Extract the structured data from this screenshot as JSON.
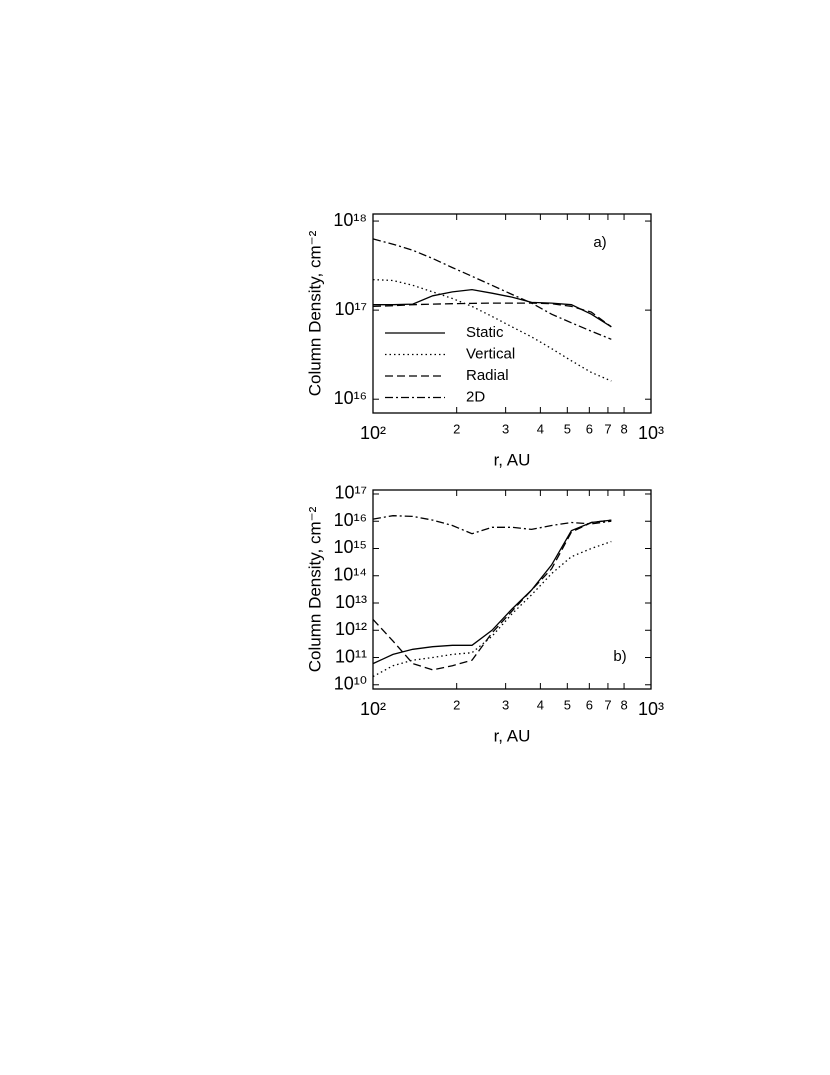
{
  "chart_data": [
    {
      "type": "line",
      "annotation": "a)",
      "x_label": "r, AU",
      "y_label": "Column Density, cm⁻²",
      "xscale": "log",
      "yscale": "log",
      "legend": "lower left",
      "xlim": [
        100,
        1000
      ],
      "xticks": [
        {
          "value": 100,
          "label": "10²"
        },
        {
          "value": 200,
          "label": "2"
        },
        {
          "value": 300,
          "label": "3"
        },
        {
          "value": 400,
          "label": "4"
        },
        {
          "value": 500,
          "label": "5"
        },
        {
          "value": 600,
          "label": "6"
        },
        {
          "value": 700,
          "label": "7"
        },
        {
          "value": 800,
          "label": "8"
        },
        {
          "value": 1000,
          "label": "10³"
        }
      ],
      "ylim": [
        7000000000000000.0,
        1.2e+18
      ],
      "yticks": [
        {
          "value": 1e+16,
          "label": "10¹⁶"
        },
        {
          "value": 1e+17,
          "label": "10¹⁷"
        },
        {
          "value": 1e+18,
          "label": "10¹⁸"
        }
      ],
      "x": [
        100,
        118,
        139,
        164,
        193,
        227,
        268,
        316,
        372,
        439,
        517,
        610,
        720
      ],
      "series": [
        {
          "name": "Static",
          "color": "#000000",
          "style": "solid",
          "values": [
            1.15e+17,
            1.15e+17,
            1.17e+17,
            1.45e+17,
            1.6e+17,
            1.7e+17,
            1.55e+17,
            1.4e+17,
            1.22e+17,
            1.2e+17,
            1.15e+17,
            9e+16,
            6.5e+16
          ]
        },
        {
          "name": "Vertical",
          "color": "#000000",
          "style": "dotted",
          "values": [
            2.2e+17,
            2.15e+17,
            1.9e+17,
            1.6e+17,
            1.35e+17,
            1.1e+17,
            8.5e+16,
            6.5e+16,
            5e+16,
            3.7e+16,
            2.7e+16,
            2e+16,
            1.6e+16
          ]
        },
        {
          "name": "Radial",
          "color": "#000000",
          "style": "dashed",
          "values": [
            1.1e+17,
            1.12e+17,
            1.15e+17,
            1.17e+17,
            1.18e+17,
            1.19e+17,
            1.2e+17,
            1.2e+17,
            1.2e+17,
            1.18e+17,
            1.1e+17,
            9.5e+16,
            6.5e+16
          ]
        },
        {
          "name": "2D",
          "color": "#000000",
          "style": "dashdot",
          "values": [
            6.3e+17,
            5.5e+17,
            4.7e+17,
            3.8e+17,
            3e+17,
            2.4e+17,
            1.9e+17,
            1.5e+17,
            1.2e+17,
            9e+16,
            7.2e+16,
            5.8e+16,
            4.7e+16
          ]
        }
      ]
    },
    {
      "type": "line",
      "annotation": "b)",
      "x_label": "r, AU",
      "y_label": "Column Density, cm⁻²",
      "xscale": "log",
      "yscale": "log",
      "xlim": [
        100,
        1000
      ],
      "xticks": [
        {
          "value": 100,
          "label": "10²"
        },
        {
          "value": 200,
          "label": "2"
        },
        {
          "value": 300,
          "label": "3"
        },
        {
          "value": 400,
          "label": "4"
        },
        {
          "value": 500,
          "label": "5"
        },
        {
          "value": 600,
          "label": "6"
        },
        {
          "value": 700,
          "label": "7"
        },
        {
          "value": 800,
          "label": "8"
        },
        {
          "value": 1000,
          "label": "10³"
        }
      ],
      "ylim": [
        7000000000.0,
        1.4e+17
      ],
      "yticks": [
        {
          "value": 10000000000.0,
          "label": "10¹⁰"
        },
        {
          "value": 100000000000.0,
          "label": "10¹¹"
        },
        {
          "value": 1000000000000.0,
          "label": "10¹²"
        },
        {
          "value": 10000000000000.0,
          "label": "10¹³"
        },
        {
          "value": 100000000000000.0,
          "label": "10¹⁴"
        },
        {
          "value": 1000000000000000.0,
          "label": "10¹⁵"
        },
        {
          "value": 1e+16,
          "label": "10¹⁶"
        },
        {
          "value": 1e+17,
          "label": "10¹⁷"
        }
      ],
      "x": [
        100,
        118,
        139,
        164,
        193,
        227,
        268,
        316,
        372,
        439,
        517,
        610,
        720
      ],
      "series": [
        {
          "color": "#000000",
          "style": "solid",
          "values": [
            60000000000.0,
            130000000000.0,
            200000000000.0,
            250000000000.0,
            280000000000.0,
            280000000000.0,
            1000000000000.0,
            6000000000000.0,
            30000000000000.0,
            250000000000000.0,
            4500000000000000.0,
            9000000000000000.0,
            1.1e+16
          ]
        },
        {
          "color": "#000000",
          "style": "dotted",
          "values": [
            20000000000.0,
            50000000000.0,
            80000000000.0,
            100000000000.0,
            130000000000.0,
            150000000000.0,
            600000000000.0,
            4000000000000.0,
            20000000000000.0,
            120000000000000.0,
            500000000000000.0,
            1000000000000000.0,
            1800000000000000.0
          ]
        },
        {
          "color": "#000000",
          "style": "dashed",
          "values": [
            2500000000000.0,
            400000000000.0,
            60000000000.0,
            35000000000.0,
            50000000000.0,
            80000000000.0,
            800000000000.0,
            5000000000000.0,
            30000000000000.0,
            180000000000000.0,
            4000000000000000.0,
            9000000000000000.0,
            1.1e+16
          ]
        },
        {
          "color": "#000000",
          "style": "dashdot",
          "values": [
            1.2e+16,
            1.6e+16,
            1.5e+16,
            1.1e+16,
            7000000000000000.0,
            3500000000000000.0,
            6000000000000000.0,
            6000000000000000.0,
            5000000000000000.0,
            7000000000000000.0,
            9000000000000000.0,
            8000000000000000.0,
            1e+16
          ]
        }
      ]
    }
  ]
}
